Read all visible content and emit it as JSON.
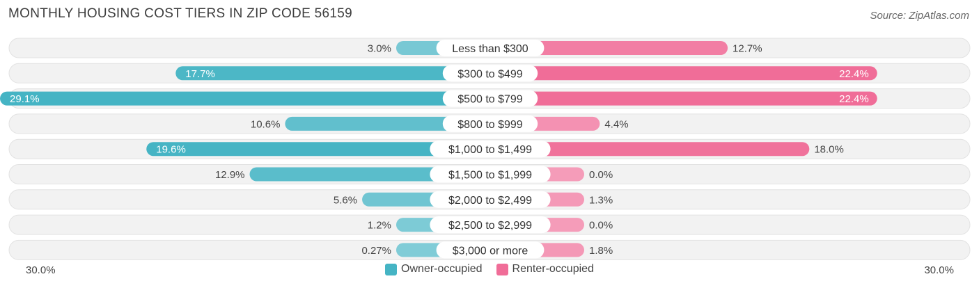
{
  "header": {
    "title": "MONTHLY HOUSING COST TIERS IN ZIP CODE 56159",
    "source": "Source: ZipAtlas.com"
  },
  "axis": {
    "left_label": "30.0%",
    "right_label": "30.0%"
  },
  "legend": {
    "owner_label": "Owner-occupied",
    "renter_label": "Renter-occupied",
    "owner_color": "#45b4c4",
    "renter_color": "#f06d98"
  },
  "chart_data": {
    "type": "bar",
    "orientation": "horizontal-diverging",
    "title": "MONTHLY HOUSING COST TIERS IN ZIP CODE 56159",
    "xlim": [
      -30,
      30
    ],
    "categories": [
      "Less than $300",
      "$300 to $499",
      "$500 to $799",
      "$800 to $999",
      "$1,000 to $1,499",
      "$1,500 to $1,999",
      "$2,000 to $2,499",
      "$2,500 to $2,999",
      "$3,000 or more"
    ],
    "series": [
      {
        "name": "Owner-occupied",
        "values": [
          3.0,
          17.7,
          29.1,
          10.6,
          19.6,
          12.9,
          5.6,
          1.2,
          0.27
        ],
        "labels": [
          "3.0%",
          "17.7%",
          "29.1%",
          "10.6%",
          "19.6%",
          "12.9%",
          "5.6%",
          "1.2%",
          "0.27%"
        ]
      },
      {
        "name": "Renter-occupied",
        "values": [
          12.7,
          22.4,
          22.4,
          4.4,
          18.0,
          0.0,
          1.3,
          0.0,
          1.8
        ],
        "labels": [
          "12.7%",
          "22.4%",
          "22.4%",
          "4.4%",
          "18.0%",
          "0.0%",
          "1.3%",
          "0.0%",
          "1.8%"
        ]
      }
    ],
    "legend_position": "bottom-center"
  }
}
